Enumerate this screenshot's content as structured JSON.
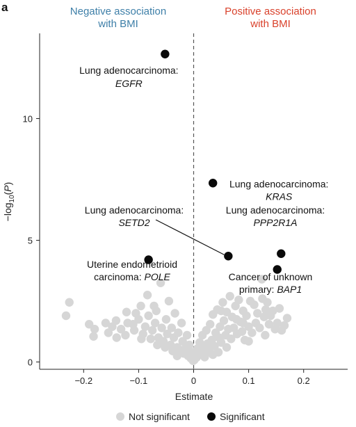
{
  "panel_label": "a",
  "colors": {
    "negative": "#3e7fa8",
    "positive": "#d9412b",
    "not_significant": "#d6d6d6",
    "significant": "#0a0a0a",
    "axis": "#222222",
    "zero_line": "#555555"
  },
  "header": {
    "negative_line1": "Negative association",
    "negative_line2": "with BMI",
    "positive_line1": "Positive association",
    "positive_line2": "with BMI"
  },
  "chart_data": {
    "type": "scatter",
    "xlabel": "Estimate",
    "ylabel_prefix": "−log",
    "ylabel_sub": "10",
    "ylabel_paren_open": "(",
    "ylabel_var": "P",
    "ylabel_paren_close": ")",
    "xlim": [
      -0.28,
      0.28
    ],
    "ylim": [
      -0.3,
      13.5
    ],
    "x_ticks": [
      -0.2,
      -0.1,
      0,
      0.1,
      0.2
    ],
    "x_tick_labels": [
      "−0.2",
      "−0.1",
      "0",
      "0.1",
      "0.2"
    ],
    "y_ticks": [
      0,
      5,
      10
    ],
    "y_tick_labels": [
      "0",
      "5",
      "10"
    ],
    "zero_line": "dashed vertical at x = 0",
    "grid": false,
    "legend": {
      "position": "bottom",
      "items": [
        {
          "label": "Not significant",
          "color": "#d6d6d6"
        },
        {
          "label": "Significant",
          "color": "#0a0a0a"
        }
      ]
    },
    "series": [
      {
        "name": "Significant",
        "points": [
          {
            "x": -0.052,
            "y": 12.65,
            "label_line1": "Lung adenocarcinoma:",
            "label_gene": "EGFR",
            "label_prefix": "",
            "label_align": "right"
          },
          {
            "x": 0.035,
            "y": 7.35,
            "label_line1": "Lung adenocarcinoma:",
            "label_gene": "KRAS",
            "label_prefix": "",
            "label_align": "left"
          },
          {
            "x": 0.063,
            "y": 4.35,
            "label_line1": "Lung adenocarcinoma:",
            "label_gene": "SETD2",
            "label_prefix": "",
            "label_align": "leader"
          },
          {
            "x": 0.159,
            "y": 4.45,
            "label_line1": "Lung adenocarcinoma:",
            "label_gene": "PPP2R1A",
            "label_prefix": "",
            "label_align": "above"
          },
          {
            "x": 0.152,
            "y": 3.8,
            "label_line1": "Cancer of unknown",
            "label_gene": "BAP1",
            "label_prefix": "primary: ",
            "label_align": "below"
          },
          {
            "x": -0.082,
            "y": 4.2,
            "label_line1": "Uterine endometrioid",
            "label_gene": "POLE",
            "label_prefix": "carcinoma: ",
            "label_align": "below"
          }
        ]
      },
      {
        "name": "Not significant",
        "points": [
          [
            -0.232,
            1.9
          ],
          [
            -0.226,
            2.45
          ],
          [
            -0.19,
            1.55
          ],
          [
            -0.18,
            1.35
          ],
          [
            -0.182,
            1.05
          ],
          [
            -0.16,
            1.6
          ],
          [
            -0.155,
            1.2
          ],
          [
            -0.148,
            1.45
          ],
          [
            -0.141,
            1.7
          ],
          [
            -0.132,
            1.35
          ],
          [
            -0.124,
            1.1
          ],
          [
            -0.122,
            2.05
          ],
          [
            -0.11,
            1.55
          ],
          [
            -0.108,
            1.3
          ],
          [
            -0.1,
            1.75
          ],
          [
            -0.096,
            2.3
          ],
          [
            -0.092,
            1.15
          ],
          [
            -0.088,
            1.45
          ],
          [
            -0.084,
            2.75
          ],
          [
            -0.082,
            1.9
          ],
          [
            -0.078,
            0.95
          ],
          [
            -0.075,
            1.3
          ],
          [
            -0.07,
            1.6
          ],
          [
            -0.068,
            2.1
          ],
          [
            -0.064,
            1.0
          ],
          [
            -0.06,
            3.25
          ],
          [
            -0.058,
            1.4
          ],
          [
            -0.055,
            0.85
          ],
          [
            -0.05,
            1.75
          ],
          [
            -0.048,
            1.15
          ],
          [
            -0.045,
            2.5
          ],
          [
            -0.042,
            0.7
          ],
          [
            -0.04,
            1.4
          ],
          [
            -0.036,
            1.0
          ],
          [
            -0.034,
            2.0
          ],
          [
            -0.03,
            0.6
          ],
          [
            -0.028,
            1.2
          ],
          [
            -0.025,
            0.5
          ],
          [
            -0.022,
            1.6
          ],
          [
            -0.02,
            0.85
          ],
          [
            -0.018,
            0.35
          ],
          [
            -0.015,
            0.55
          ],
          [
            -0.012,
            1.1
          ],
          [
            -0.01,
            0.25
          ],
          [
            -0.008,
            0.7
          ],
          [
            -0.005,
            0.15
          ],
          [
            -0.003,
            0.4
          ],
          [
            -0.001,
            0.05
          ],
          [
            0.001,
            0.08
          ],
          [
            0.003,
            0.3
          ],
          [
            0.005,
            0.18
          ],
          [
            0.007,
            0.55
          ],
          [
            0.009,
            0.28
          ],
          [
            0.011,
            0.8
          ],
          [
            0.013,
            0.45
          ],
          [
            0.016,
            1.1
          ],
          [
            0.018,
            0.6
          ],
          [
            0.021,
            0.35
          ],
          [
            0.023,
            1.3
          ],
          [
            0.025,
            0.75
          ],
          [
            0.028,
            0.5
          ],
          [
            0.03,
            1.55
          ],
          [
            0.033,
            0.9
          ],
          [
            0.035,
            1.95
          ],
          [
            0.038,
            0.65
          ],
          [
            0.04,
            1.2
          ],
          [
            0.043,
            2.15
          ],
          [
            0.046,
            1.0
          ],
          [
            0.048,
            1.45
          ],
          [
            0.05,
            0.8
          ],
          [
            0.053,
            2.45
          ],
          [
            0.055,
            1.7
          ],
          [
            0.058,
            1.1
          ],
          [
            0.06,
            2.05
          ],
          [
            0.063,
            1.35
          ],
          [
            0.066,
            2.7
          ],
          [
            0.068,
            0.95
          ],
          [
            0.07,
            1.85
          ],
          [
            0.073,
            1.4
          ],
          [
            0.076,
            2.3
          ],
          [
            0.079,
            1.15
          ],
          [
            0.082,
            2.55
          ],
          [
            0.085,
            1.65
          ],
          [
            0.088,
            1.25
          ],
          [
            0.09,
            2.1
          ],
          [
            0.093,
            0.9
          ],
          [
            0.096,
            1.9
          ],
          [
            0.1,
            1.45
          ],
          [
            0.103,
            2.5
          ],
          [
            0.106,
            1.2
          ],
          [
            0.11,
            2.35
          ],
          [
            0.113,
            1.6
          ],
          [
            0.116,
            2.0
          ],
          [
            0.12,
            1.4
          ],
          [
            0.124,
            3.4
          ],
          [
            0.125,
            2.6
          ],
          [
            0.128,
            1.85
          ],
          [
            0.131,
            2.15
          ],
          [
            0.134,
            2.45
          ],
          [
            0.137,
            1.55
          ],
          [
            0.14,
            1.9
          ],
          [
            0.144,
            2.1
          ],
          [
            0.148,
            1.35
          ],
          [
            0.152,
            1.6
          ],
          [
            0.156,
            2.2
          ],
          [
            0.16,
            1.3
          ],
          [
            0.165,
            1.5
          ],
          [
            0.17,
            1.8
          ],
          [
            -0.038,
            0.45
          ],
          [
            -0.052,
            0.6
          ],
          [
            -0.066,
            0.7
          ],
          [
            -0.03,
            0.25
          ],
          [
            0.02,
            0.2
          ],
          [
            0.045,
            0.4
          ],
          [
            0.06,
            0.6
          ],
          [
            0.035,
            0.3
          ],
          [
            -0.095,
            0.95
          ],
          [
            0.1,
            0.85
          ],
          [
            -0.14,
            1.0
          ],
          [
            0.13,
            1.1
          ],
          [
            -0.12,
            1.6
          ],
          [
            -0.105,
            2.0
          ],
          [
            0.09,
            1.6
          ],
          [
            0.078,
            1.75
          ],
          [
            -0.072,
            2.3
          ],
          [
            0.05,
            2.1
          ]
        ]
      }
    ]
  }
}
